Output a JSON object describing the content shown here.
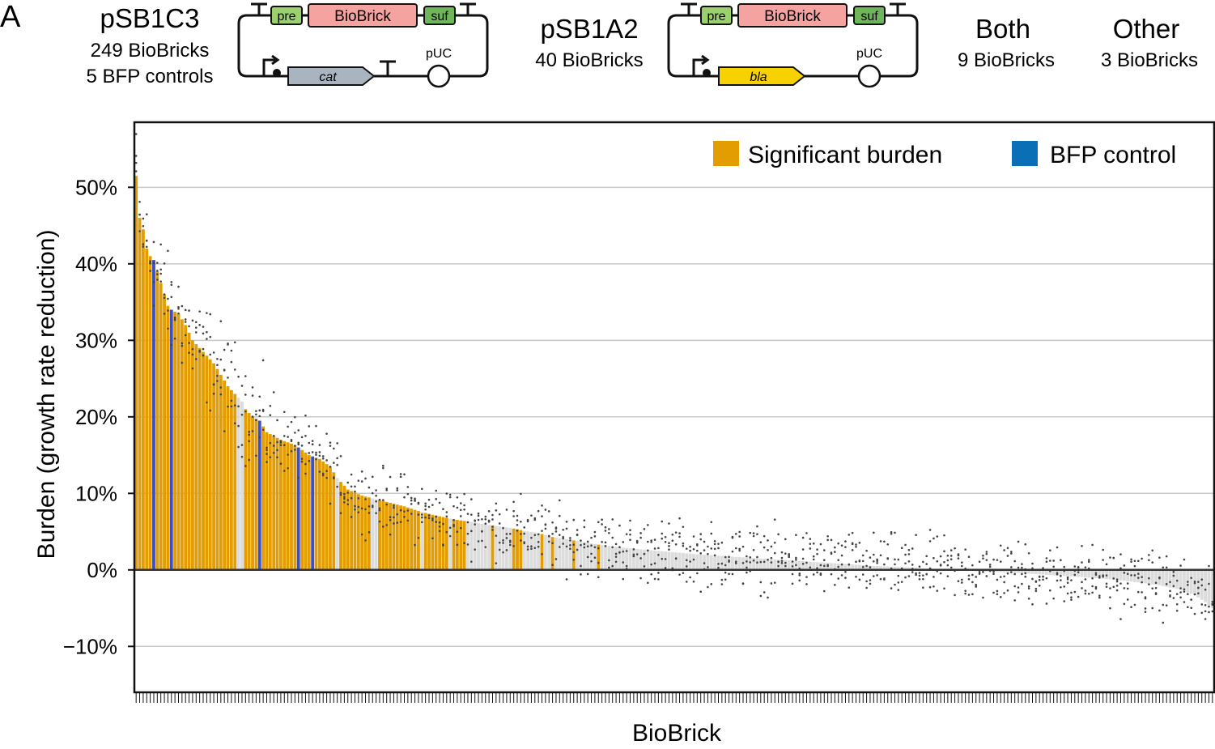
{
  "panel_label": "A",
  "header": {
    "pSB1C3": {
      "title": "pSB1C3",
      "line1": "249 BioBricks",
      "line2": "5 BFP controls",
      "parts": {
        "pre": "pre",
        "biobrick": "BioBrick",
        "suf": "suf",
        "marker": "cat",
        "origin": "pUC"
      }
    },
    "pSB1A2": {
      "title": "pSB1A2",
      "line1": "40 BioBricks",
      "parts": {
        "pre": "pre",
        "biobrick": "BioBrick",
        "suf": "suf",
        "marker": "bla",
        "origin": "pUC"
      }
    },
    "both": {
      "title": "Both",
      "line1": "9 BioBricks"
    },
    "other": {
      "title": "Other",
      "line1": "3 BioBricks"
    }
  },
  "colors": {
    "significant": "#E39D00",
    "bfp": "#3B4FC8",
    "bfp_legend": "#0A6FB5",
    "nonsignificant": "#DCDCDC",
    "point": "#444444",
    "grid": "#C8C8C8",
    "pre_green": "#9BD06C",
    "suf_green": "#6FB55A",
    "biobrick_pink": "#F5A3A0",
    "cat_gray": "#A9B4C0",
    "bla_yellow": "#F7D200"
  },
  "chart_data": {
    "type": "bar",
    "title": "",
    "xlabel": "BioBrick",
    "ylabel": "Burden (growth rate reduction)",
    "ylim": [
      -16,
      58.5
    ],
    "y_ticks": [
      -10,
      0,
      10,
      20,
      30,
      40,
      50
    ],
    "y_tick_labels": [
      "−10%",
      "0%",
      "10%",
      "20%",
      "30%",
      "40%",
      "50%"
    ],
    "legend": [
      {
        "label": "Significant burden",
        "color": "#E39D00"
      },
      {
        "label": "BFP control",
        "color": "#0A6FB5"
      }
    ],
    "legend_position": "top-right",
    "n_biobricks": 306,
    "bfp_control_indices": [
      5,
      10,
      35,
      46,
      50
    ],
    "significant_ranges": [
      [
        0,
        28
      ],
      [
        31,
        56
      ],
      [
        58,
        60
      ],
      [
        61,
        66
      ],
      [
        69,
        80
      ],
      [
        82,
        88
      ],
      [
        90,
        93
      ],
      [
        101,
        101
      ],
      [
        107,
        109
      ],
      [
        115,
        115
      ],
      [
        118,
        118
      ],
      [
        124,
        124
      ],
      [
        131,
        131
      ]
    ],
    "burden_profile": [
      [
        0,
        51.5
      ],
      [
        1,
        46
      ],
      [
        2,
        44.5
      ],
      [
        3,
        42
      ],
      [
        4,
        41
      ],
      [
        5,
        40.5
      ],
      [
        6,
        39
      ],
      [
        7,
        37.5
      ],
      [
        8,
        36
      ],
      [
        9,
        34.5
      ],
      [
        10,
        34
      ],
      [
        12,
        33.5
      ],
      [
        14,
        32
      ],
      [
        16,
        30
      ],
      [
        18,
        29
      ],
      [
        20,
        28
      ],
      [
        22,
        27
      ],
      [
        24,
        25.5
      ],
      [
        26,
        24
      ],
      [
        28,
        23
      ],
      [
        30,
        22
      ],
      [
        31,
        21
      ],
      [
        33,
        20
      ],
      [
        35,
        19.5
      ],
      [
        37,
        18
      ],
      [
        39,
        17.5
      ],
      [
        41,
        17
      ],
      [
        44,
        16.5
      ],
      [
        46,
        16
      ],
      [
        49,
        15
      ],
      [
        52,
        14.5
      ],
      [
        55,
        13.5
      ],
      [
        57,
        12
      ],
      [
        60,
        10.5
      ],
      [
        64,
        9.7
      ],
      [
        70,
        9
      ],
      [
        76,
        8.3
      ],
      [
        80,
        7.7
      ],
      [
        84,
        7.2
      ],
      [
        90,
        6.6
      ],
      [
        96,
        6.2
      ],
      [
        101,
        5.8
      ],
      [
        106,
        5.5
      ],
      [
        110,
        5.1
      ],
      [
        114,
        4.8
      ],
      [
        118,
        4.3
      ],
      [
        122,
        4
      ],
      [
        126,
        3.7
      ],
      [
        131,
        3.3
      ],
      [
        140,
        2.8
      ],
      [
        150,
        2.4
      ],
      [
        160,
        2
      ],
      [
        170,
        1.7
      ],
      [
        180,
        1.4
      ],
      [
        190,
        1.1
      ],
      [
        200,
        0.8
      ],
      [
        210,
        0.5
      ],
      [
        220,
        0.3
      ],
      [
        230,
        0.05
      ],
      [
        240,
        -0.2
      ],
      [
        250,
        -0.4
      ],
      [
        260,
        -0.7
      ],
      [
        270,
        -1
      ],
      [
        280,
        -1.4
      ],
      [
        290,
        -2
      ],
      [
        296,
        -2.6
      ],
      [
        300,
        -3.3
      ],
      [
        303,
        -4.2
      ],
      [
        305,
        -5
      ]
    ],
    "replicate_spread": 3.5,
    "replicates_per_biobrick": 4
  }
}
